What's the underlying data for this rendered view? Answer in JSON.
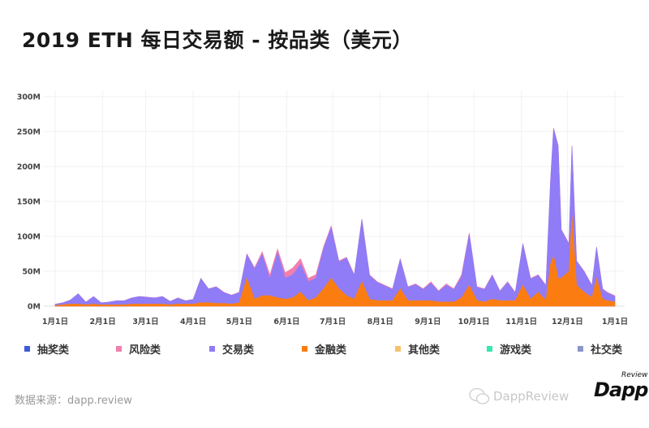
{
  "title": "2019 ETH 每日交易额 - 按品类（美元）",
  "source": "数据来源：dapp.review",
  "watermark": {
    "text": "DappReview",
    "logo_main": "Dapp",
    "logo_sub": "Review"
  },
  "chart_data": {
    "type": "area",
    "stacked": true,
    "title": "2019 ETH 每日交易额 - 按品类（美元）",
    "xlabel": "",
    "ylabel": "",
    "ylim": [
      0,
      300
    ],
    "y_unit": "M",
    "y_ticks": [
      "0M",
      "50M",
      "100M",
      "150M",
      "200M",
      "250M",
      "300M"
    ],
    "x_ticks": [
      {
        "date": "2019-01-01",
        "label": "1月1日"
      },
      {
        "date": "2019-02-01",
        "label": "2月1日"
      },
      {
        "date": "2019-03-01",
        "label": "3月1日"
      },
      {
        "date": "2019-04-01",
        "label": "4月1日"
      },
      {
        "date": "2019-05-01",
        "label": "5月1日"
      },
      {
        "date": "2019-06-01",
        "label": "6月1日"
      },
      {
        "date": "2019-07-01",
        "label": "7月1日"
      },
      {
        "date": "2019-08-01",
        "label": "8月1日"
      },
      {
        "date": "2019-09-01",
        "label": "9月1日"
      },
      {
        "date": "2019-10-01",
        "label": "10月1日"
      },
      {
        "date": "2019-11-01",
        "label": "11月1日"
      },
      {
        "date": "2019-12-01",
        "label": "12月1日"
      },
      {
        "date": "2020-01-01",
        "label": "1月1日"
      }
    ],
    "grid": true,
    "legend_position": "bottom",
    "x": [
      "2019-01-01",
      "2019-01-06",
      "2019-01-11",
      "2019-01-16",
      "2019-01-21",
      "2019-01-26",
      "2019-01-31",
      "2019-02-05",
      "2019-02-10",
      "2019-02-15",
      "2019-02-20",
      "2019-02-25",
      "2019-03-02",
      "2019-03-07",
      "2019-03-12",
      "2019-03-17",
      "2019-03-22",
      "2019-03-27",
      "2019-04-01",
      "2019-04-06",
      "2019-04-11",
      "2019-04-16",
      "2019-04-21",
      "2019-04-26",
      "2019-05-01",
      "2019-05-06",
      "2019-05-11",
      "2019-05-16",
      "2019-05-21",
      "2019-05-26",
      "2019-05-31",
      "2019-06-05",
      "2019-06-10",
      "2019-06-15",
      "2019-06-20",
      "2019-06-25",
      "2019-06-30",
      "2019-07-05",
      "2019-07-10",
      "2019-07-15",
      "2019-07-20",
      "2019-07-25",
      "2019-07-30",
      "2019-08-04",
      "2019-08-09",
      "2019-08-14",
      "2019-08-19",
      "2019-08-24",
      "2019-08-29",
      "2019-09-03",
      "2019-09-08",
      "2019-09-13",
      "2019-09-18",
      "2019-09-23",
      "2019-09-28",
      "2019-10-03",
      "2019-10-08",
      "2019-10-13",
      "2019-10-18",
      "2019-10-23",
      "2019-10-28",
      "2019-11-02",
      "2019-11-07",
      "2019-11-12",
      "2019-11-17",
      "2019-11-20",
      "2019-11-22",
      "2019-11-25",
      "2019-11-27",
      "2019-12-02",
      "2019-12-04",
      "2019-12-07",
      "2019-12-12",
      "2019-12-17",
      "2019-12-20",
      "2019-12-24",
      "2019-12-27",
      "2020-01-01"
    ],
    "series": [
      {
        "name": "金融类",
        "color": "#fb7d12",
        "values": [
          1,
          2,
          3,
          3,
          2,
          3,
          2,
          2,
          2,
          2,
          3,
          3,
          3,
          3,
          3,
          2,
          3,
          3,
          3,
          5,
          5,
          4,
          4,
          3,
          5,
          40,
          10,
          15,
          15,
          12,
          10,
          12,
          20,
          8,
          12,
          25,
          40,
          25,
          15,
          10,
          35,
          10,
          8,
          8,
          8,
          25,
          8,
          8,
          8,
          8,
          6,
          6,
          6,
          12,
          30,
          8,
          6,
          10,
          8,
          8,
          8,
          30,
          10,
          20,
          8,
          60,
          72,
          40,
          40,
          50,
          130,
          30,
          20,
          12,
          40,
          10,
          8,
          6
        ]
      },
      {
        "name": "其他类",
        "color": "#f5c36b"
      },
      {
        "name": "游戏类",
        "color": "#35e8b0"
      },
      {
        "name": "社交类",
        "color": "#8b95c9"
      },
      {
        "name": "交易类",
        "color": "#8f7cf6",
        "values": [
          1.7,
          2.7,
          5.7,
          14.7,
          3.7,
          10.7,
          2.7,
          3.7,
          5.7,
          5.7,
          8.7,
          10.7,
          9.7,
          8.7,
          10.7,
          4.7,
          8.7,
          4.7,
          6.5,
          34.5,
          19.5,
          23.5,
          15.5,
          12.5,
          14.5,
          34,
          43,
          59,
          24,
          65,
          30,
          33,
          40,
          27,
          28,
          57,
          73,
          38,
          54,
          34,
          89,
          34,
          26,
          21,
          16,
          42,
          19,
          23,
          16,
          25,
          15,
          24,
          18,
          30,
          73,
          19,
          18,
          34,
          13,
          26,
          11,
          59,
          29,
          24,
          21,
          119,
          182,
          189,
          69,
          39,
          99,
          34,
          29,
          17,
          44,
          14,
          11,
          8
        ]
      },
      {
        "name": "风险类",
        "color": "#f07fae",
        "values": [
          0.3,
          0.3,
          0.3,
          0.3,
          0.3,
          0.3,
          0.3,
          0.3,
          0.3,
          0.3,
          0.3,
          0.3,
          0.3,
          0.3,
          0.3,
          0.3,
          0.3,
          0.3,
          0.5,
          0.5,
          0.5,
          0.5,
          0.5,
          0.5,
          0.5,
          1,
          2,
          4,
          6,
          5,
          8,
          10,
          8,
          5,
          5,
          3,
          2,
          2,
          1,
          1,
          1,
          1,
          1,
          1,
          1,
          1,
          1,
          1,
          1,
          2,
          1,
          2,
          1,
          3,
          2,
          1,
          1,
          1,
          1,
          1,
          1,
          1,
          1,
          1,
          1,
          1,
          1,
          1,
          1,
          1,
          1,
          1,
          1,
          1,
          1,
          1,
          1,
          1
        ]
      },
      {
        "name": "抽奖类",
        "color": "#3d5bd9"
      }
    ],
    "legend_order": [
      "抽奖类",
      "风险类",
      "交易类",
      "金融类",
      "其他类",
      "游戏类",
      "社交类"
    ]
  }
}
